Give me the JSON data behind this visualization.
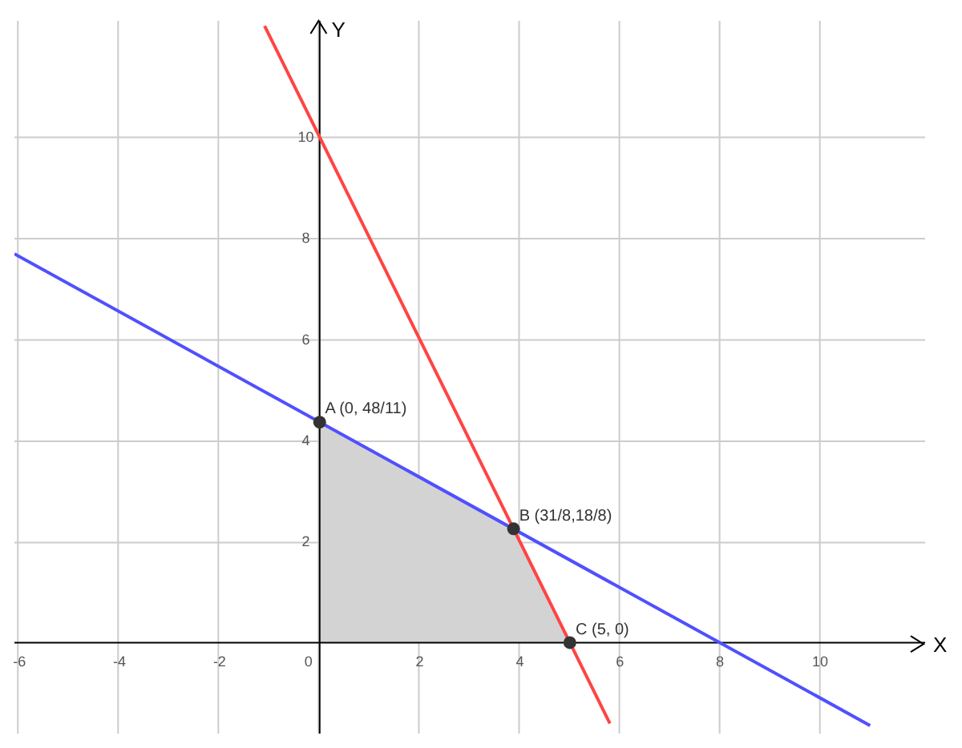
{
  "chart_data": {
    "type": "line",
    "xlabel": "X",
    "ylabel": "Y",
    "xlim": [
      -6.1,
      12.1
    ],
    "ylim": [
      -1.8,
      12.3
    ],
    "xticks": [
      -6,
      -4,
      -2,
      0,
      2,
      4,
      6,
      8,
      10
    ],
    "yticks": [
      2,
      4,
      6,
      8,
      10
    ],
    "grid": true,
    "legend": false,
    "series": [
      {
        "type": "area",
        "color": "#d3d3d3",
        "x": [
          0,
          0,
          3.875,
          5
        ],
        "values": [
          0,
          4.36,
          2.25,
          0
        ]
      },
      {
        "color": "#ff4444",
        "x": [
          -1.1,
          5.8
        ],
        "values": [
          12.2,
          -1.6
        ]
      },
      {
        "color": "#5050ff",
        "x": [
          -6.1,
          11
        ],
        "values": [
          7.69,
          -1.64
        ]
      },
      {
        "type": "scatter",
        "color": "#333333",
        "x": [
          0,
          3.875,
          5
        ],
        "values": [
          4.36,
          2.25,
          0
        ]
      }
    ],
    "annotations": [
      {
        "text": "A (0, 48/11)",
        "x": 0,
        "y": 4.36
      },
      {
        "text": "B (31/8,18/8)",
        "x": 3.875,
        "y": 2.25
      },
      {
        "text": "C (5, 0)",
        "x": 5,
        "y": 0
      }
    ]
  }
}
